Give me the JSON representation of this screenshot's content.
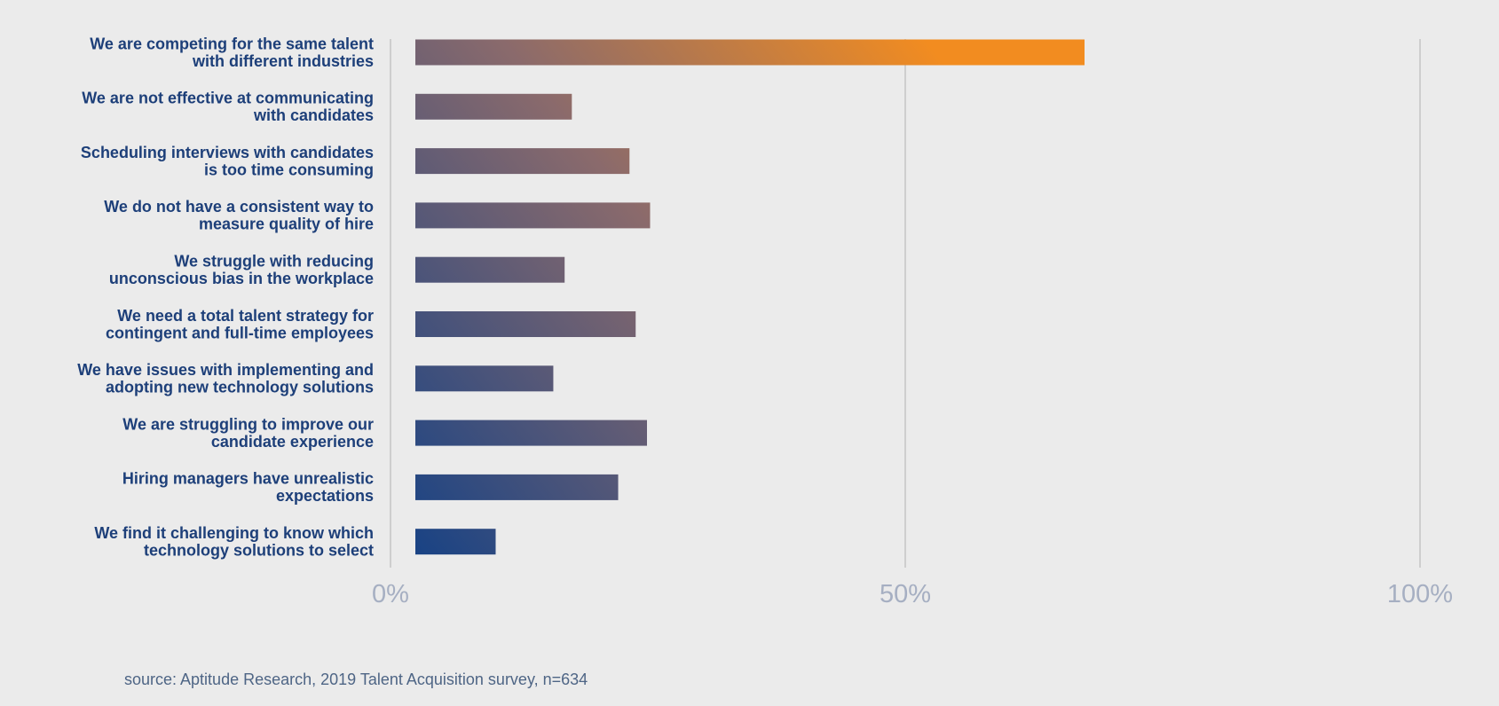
{
  "chart_data": {
    "type": "bar",
    "orientation": "horizontal",
    "categories": [
      [
        "We are competing for the same talent",
        "with different industries"
      ],
      [
        "We are not effective at communicating",
        "with candidates"
      ],
      [
        "Scheduling interviews with candidates",
        "is too time consuming"
      ],
      [
        "We do not have a consistent way to",
        "measure quality of hire"
      ],
      [
        "We struggle with reducing",
        "unconscious bias in the workplace"
      ],
      [
        "We need a total talent strategy for",
        "contingent and full-time employees"
      ],
      [
        "We have issues with implementing and",
        "adopting new technology solutions"
      ],
      [
        "We are struggling to improve our",
        "candidate experience"
      ],
      [
        "Hiring managers have unrealistic",
        "expectations"
      ],
      [
        "We find it challenging to know which",
        "technology solutions to select"
      ]
    ],
    "values": [
      65,
      15.2,
      20.8,
      22.8,
      14.5,
      21.4,
      13.4,
      22.5,
      19.7,
      7.8
    ],
    "xlim": [
      0,
      100
    ],
    "xticks": [
      0,
      50,
      100
    ],
    "xtick_labels": [
      "0%",
      "50%",
      "100%"
    ],
    "grid": true,
    "colors": {
      "bar_start": "#1a4384",
      "bar_mid": "#8a6a6c",
      "bar_end": "#f28c20",
      "label": "#1d3f79",
      "tick": "#a6afc2",
      "gridline": "#c4c4c4",
      "background": "#ebebeb"
    }
  },
  "source": "source: Aptitude Research, 2019 Talent Acquisition survey, n=634"
}
